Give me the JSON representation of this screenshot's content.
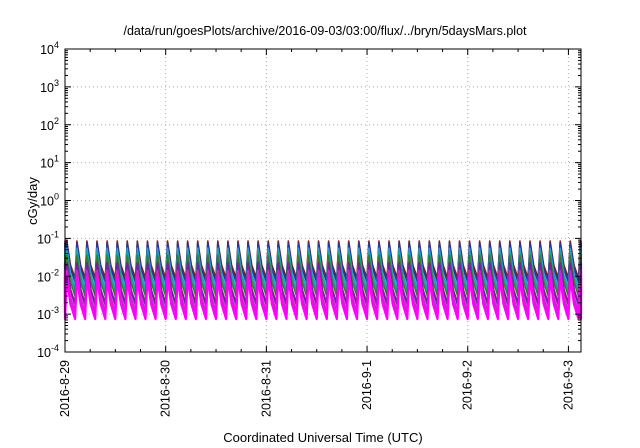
{
  "chart_data": {
    "type": "line",
    "title": "/data/run/goesPlots/archive/2016-09-03/03:00/flux/../bryn/5daysMars.plot",
    "xlabel": "Coordinated Universal Time (UTC)",
    "ylabel": "cGy/day",
    "y_scale": "log",
    "ylim": [
      0.0001,
      10000
    ],
    "y_ticks": [
      {
        "base": "10",
        "exp": "-4",
        "value": 0.0001
      },
      {
        "base": "10",
        "exp": "-3",
        "value": 0.001
      },
      {
        "base": "10",
        "exp": "-2",
        "value": 0.01
      },
      {
        "base": "10",
        "exp": "-1",
        "value": 0.1
      },
      {
        "base": "10",
        "exp": "0",
        "value": 1
      },
      {
        "base": "10",
        "exp": "1",
        "value": 10
      },
      {
        "base": "10",
        "exp": "2",
        "value": 100
      },
      {
        "base": "10",
        "exp": "3",
        "value": 1000
      },
      {
        "base": "10",
        "exp": "4",
        "value": 10000
      }
    ],
    "xlim": [
      "2016-08-29T00:00",
      "2016-09-03T03:00"
    ],
    "x_ticks": [
      "2016-8-29",
      "2016-8-30",
      "2016-8-31",
      "2016-9-1",
      "2016-9-2",
      "2016-9-3"
    ],
    "grid": true,
    "periodic_pattern": {
      "cycles_per_day": 10,
      "description_values": "sawtooth oscillation repeating ~10 times per day",
      "series": [
        {
          "color": "#8b1a1a",
          "peak": 0.085,
          "trough": 0.009
        },
        {
          "color": "#1a3aa8",
          "peak": 0.075,
          "trough": 0.007
        },
        {
          "color": "#2e9bd6",
          "peak": 0.055,
          "trough": 0.005
        },
        {
          "color": "#16a898",
          "peak": 0.045,
          "trough": 0.004
        },
        {
          "color": "#3c7a2a",
          "peak": 0.035,
          "trough": 0.003
        },
        {
          "color": "#7a1fa0",
          "peak": 0.022,
          "trough": 0.0018
        },
        {
          "color": "#d21fd2",
          "peak": 0.014,
          "trough": 0.0011
        },
        {
          "color": "#ff00ff",
          "peak": 0.0095,
          "trough": 0.00075
        }
      ]
    }
  }
}
